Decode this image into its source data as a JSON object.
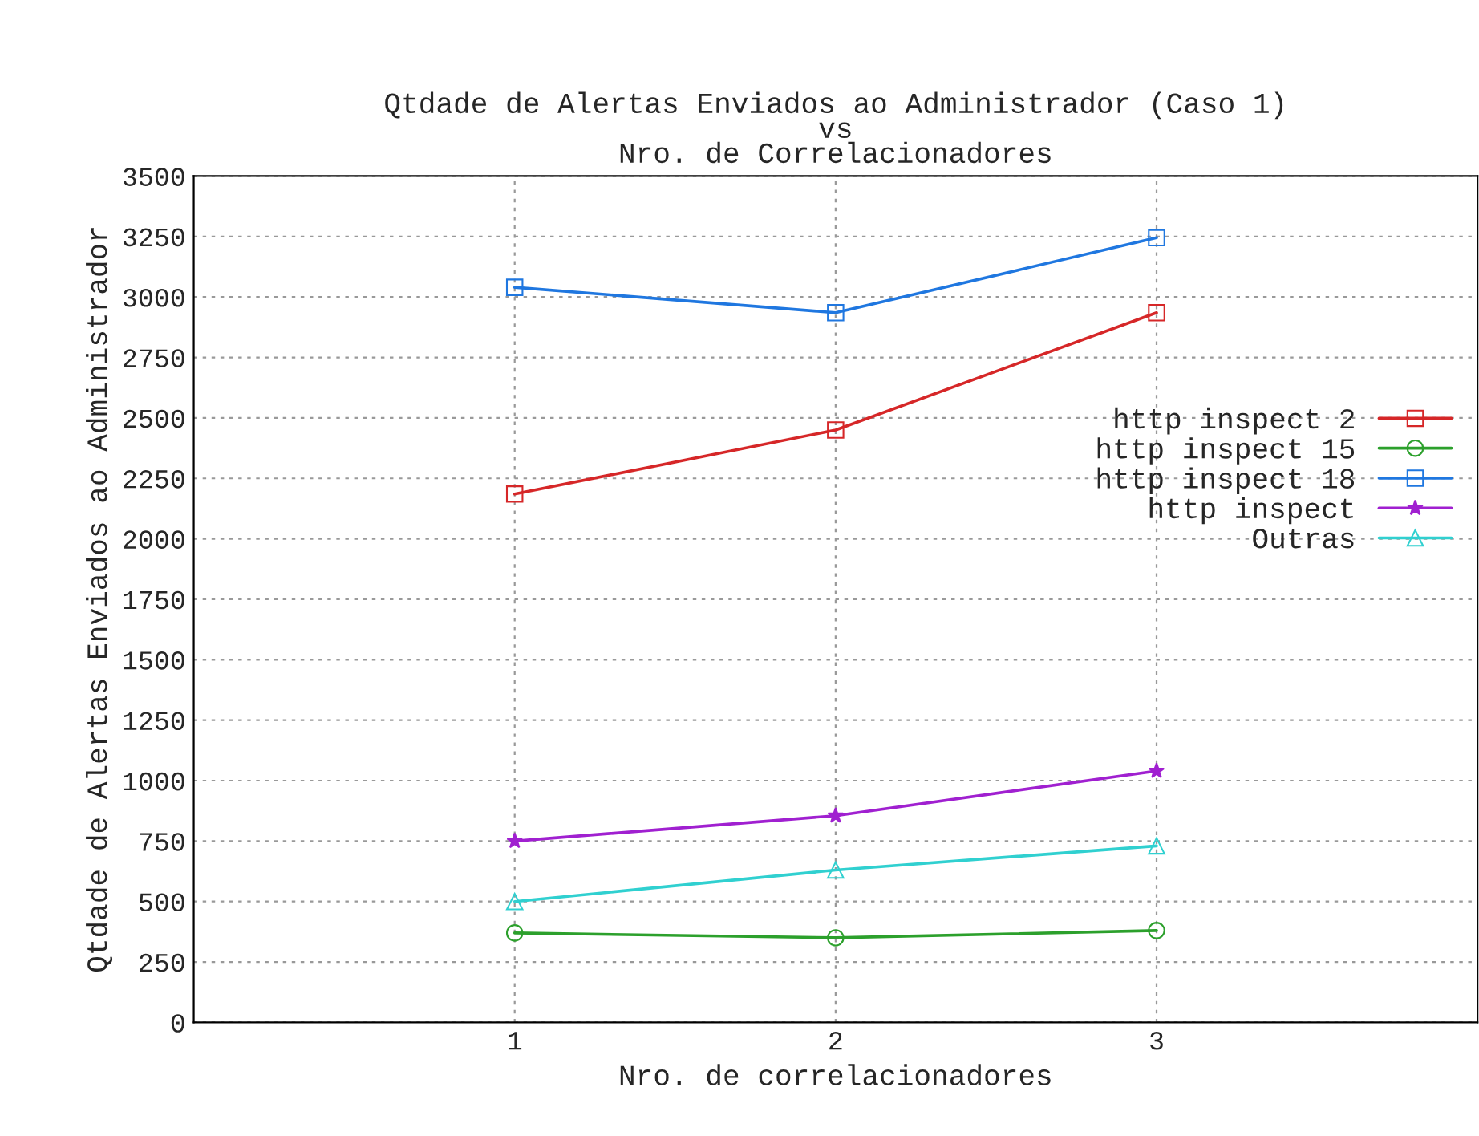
{
  "chart_data": {
    "type": "line",
    "title": "Qtdade de Alertas Enviados ao Administrador (Caso 1)\nvs\nNro. de Correlacionadores",
    "xlabel": "Nro. de correlacionadores",
    "ylabel": "Qtdade de Alertas Enviados ao Administrador",
    "x": [
      1,
      2,
      3
    ],
    "series": [
      {
        "name": "http inspect 2",
        "color": "#d62728",
        "marker": "square",
        "values": [
          2185,
          2450,
          2935
        ]
      },
      {
        "name": "http inspect 15",
        "color": "#2ca02c",
        "marker": "circle",
        "values": [
          370,
          350,
          380
        ]
      },
      {
        "name": "http inspect 18",
        "color": "#1f77e0",
        "marker": "square",
        "values": [
          3040,
          2935,
          3245
        ]
      },
      {
        "name": "http inspect",
        "color": "#a020d0",
        "marker": "star",
        "values": [
          750,
          855,
          1040
        ]
      },
      {
        "name": "Outras",
        "color": "#30d0d0",
        "marker": "triangle",
        "values": [
          500,
          630,
          730
        ]
      }
    ],
    "xlim": [
      0,
      4
    ],
    "xticks": [
      1,
      2,
      3
    ],
    "ylim": [
      0,
      3500
    ],
    "yticks": [
      0,
      250,
      500,
      750,
      1000,
      1250,
      1500,
      1750,
      2000,
      2250,
      2500,
      2750,
      3000,
      3250,
      3500
    ],
    "grid": true,
    "legend": "right",
    "line_style": "solid"
  }
}
